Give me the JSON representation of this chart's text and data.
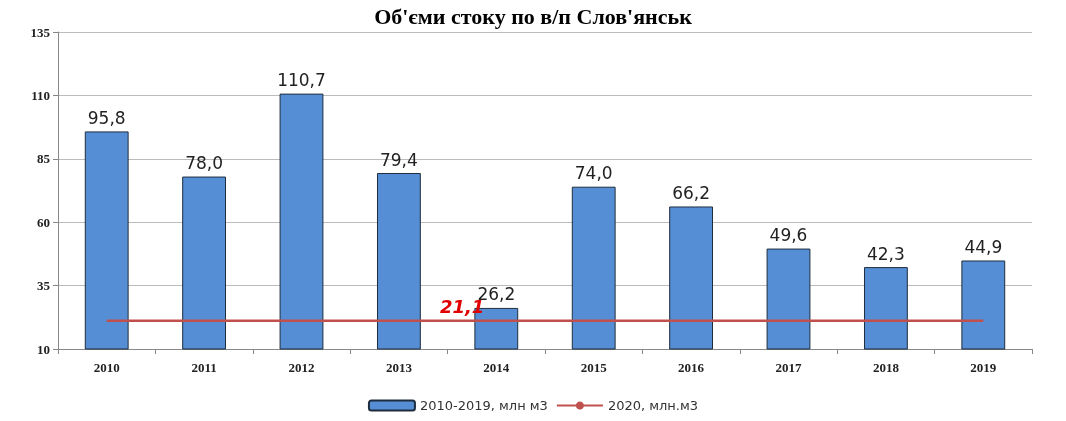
{
  "chart_data": {
    "type": "bar",
    "title": "Об'єми стоку по в/п Слов'янськ",
    "categories": [
      "2010",
      "2011",
      "2012",
      "2013",
      "2014",
      "2015",
      "2016",
      "2017",
      "2018",
      "2019"
    ],
    "series": [
      {
        "name": "2010-2019, млн м3",
        "color": "#558ed5",
        "values": [
          95.8,
          78.0,
          110.7,
          79.4,
          26.2,
          74.0,
          66.2,
          49.6,
          42.3,
          44.9
        ],
        "value_labels": [
          "95,8",
          "78,0",
          "110,7",
          "79,4",
          "26,2",
          "74,0",
          "66,2",
          "49,6",
          "42,3",
          "44,9"
        ]
      },
      {
        "name": "2020, млн.м3",
        "type": "line",
        "color": "#c0504d",
        "values": [
          21.1,
          21.1,
          21.1,
          21.1,
          21.1,
          21.1,
          21.1,
          21.1,
          21.1,
          21.1
        ],
        "value_labels": [
          null,
          null,
          null,
          null,
          "21,1",
          null,
          null,
          null,
          null,
          null
        ]
      }
    ],
    "ylim": [
      10,
      135
    ],
    "yticks": [
      10,
      35,
      60,
      85,
      110,
      135
    ],
    "grid": "y",
    "legend": "bottom",
    "marker": "none"
  }
}
